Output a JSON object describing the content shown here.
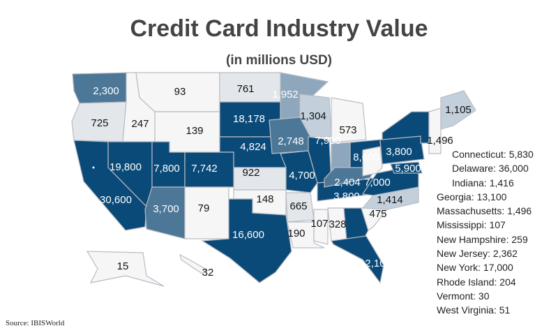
{
  "title": "Credit Card Industry Value",
  "subtitle": "(in millions USD)",
  "source": "Source: IBISWorld",
  "colors": {
    "dark": "#0a4a78",
    "mid": "#4c7797",
    "light_mid": "#8fa7bd",
    "light": "#c3d0dc",
    "pale": "#e3e6ea",
    "white": "#f6f6f7"
  },
  "states": [
    {
      "id": "WA",
      "value": "2,300",
      "shade": "mid"
    },
    {
      "id": "OR",
      "value": "725",
      "shade": "pale"
    },
    {
      "id": "ID",
      "value": "247",
      "shade": "white"
    },
    {
      "id": "MT",
      "value": "93",
      "shade": "white"
    },
    {
      "id": "WY",
      "value": "139",
      "shade": "white"
    },
    {
      "id": "ND",
      "value": "761",
      "shade": "pale"
    },
    {
      "id": "SD",
      "value": "18,178",
      "shade": "dark"
    },
    {
      "id": "NE",
      "value": "4,824",
      "shade": "dark"
    },
    {
      "id": "KS",
      "value": "922",
      "shade": "pale"
    },
    {
      "id": "MN",
      "value": "1,952",
      "shade": "light_mid"
    },
    {
      "id": "IA",
      "value": "2,748",
      "shade": "mid"
    },
    {
      "id": "WI",
      "value": "1,304",
      "shade": "light"
    },
    {
      "id": "MI",
      "value": "573",
      "shade": "white"
    },
    {
      "id": "IL",
      "value": "",
      "shade": "dark"
    },
    {
      "id": "IN",
      "value": "",
      "shade": "light_mid"
    },
    {
      "id": "OH",
      "value": "8,600",
      "shade": "dark"
    },
    {
      "id": "NV",
      "value": "19,800",
      "shade": "dark"
    },
    {
      "id": "CA",
      "value": "30,600",
      "shade": "dark"
    },
    {
      "id": "UT",
      "value": "7,800",
      "shade": "dark"
    },
    {
      "id": "CO",
      "value": "7,742",
      "shade": "dark"
    },
    {
      "id": "AZ",
      "value": "3,700",
      "shade": "mid"
    },
    {
      "id": "NM",
      "value": "79",
      "shade": "white"
    },
    {
      "id": "OK",
      "value": "148",
      "shade": "white"
    },
    {
      "id": "TX",
      "value": "16,600",
      "shade": "dark"
    },
    {
      "id": "MO",
      "value": "4,700",
      "shade": "dark"
    },
    {
      "id": "AR",
      "value": "665",
      "shade": "pale"
    },
    {
      "id": "LA",
      "value": "190",
      "shade": "white"
    },
    {
      "id": "MS",
      "value": "107",
      "shade": "white"
    },
    {
      "id": "AL",
      "value": "328",
      "shade": "white"
    },
    {
      "id": "TN",
      "value": "3,800",
      "shade": "dark"
    },
    {
      "id": "KY",
      "value": "2,404",
      "shade": "mid"
    },
    {
      "id": "GA",
      "value": "",
      "shade": "dark"
    },
    {
      "id": "FL",
      "value": "2,10",
      "shade": "dark"
    },
    {
      "id": "SC",
      "value": "475",
      "shade": "white"
    },
    {
      "id": "NC",
      "value": "1,414",
      "shade": "light"
    },
    {
      "id": "VA",
      "value": "7,000",
      "shade": "dark"
    },
    {
      "id": "WV",
      "value": "",
      "shade": "white"
    },
    {
      "id": "PA",
      "value": "3,800",
      "shade": "dark"
    },
    {
      "id": "MD",
      "value": "5,900",
      "shade": "dark"
    },
    {
      "id": "NY",
      "value": "",
      "shade": "dark"
    },
    {
      "id": "NE_REGION",
      "value": "1,496",
      "shade": "white"
    },
    {
      "id": "ME",
      "value": "1,105",
      "shade": "light"
    },
    {
      "id": "AK",
      "value": "15",
      "shade": "white"
    },
    {
      "id": "HI",
      "value": "32",
      "shade": "white"
    }
  ],
  "floating_labels": [
    {
      "id": "IL",
      "value": "7,900"
    }
  ],
  "legend": [
    {
      "text": "Connecticut: 5,830",
      "indent": true
    },
    {
      "text": "Delaware: 36,000",
      "indent": true
    },
    {
      "text": "Indiana: 1,416",
      "indent": true
    },
    {
      "text": "Georgia: 13,100",
      "indent": false
    },
    {
      "text": "Massachusetts: 1,496",
      "indent": false
    },
    {
      "text": "Mississippi: 107",
      "indent": false
    },
    {
      "text": "New Hampshire: 259",
      "indent": false
    },
    {
      "text": "New Jersey: 2,362",
      "indent": false
    },
    {
      "text": "New York: 17,000",
      "indent": false
    },
    {
      "text": "Rhode Island: 204",
      "indent": false
    },
    {
      "text": "Vermont: 30",
      "indent": false
    },
    {
      "text": "West Virginia: 51",
      "indent": false
    }
  ]
}
